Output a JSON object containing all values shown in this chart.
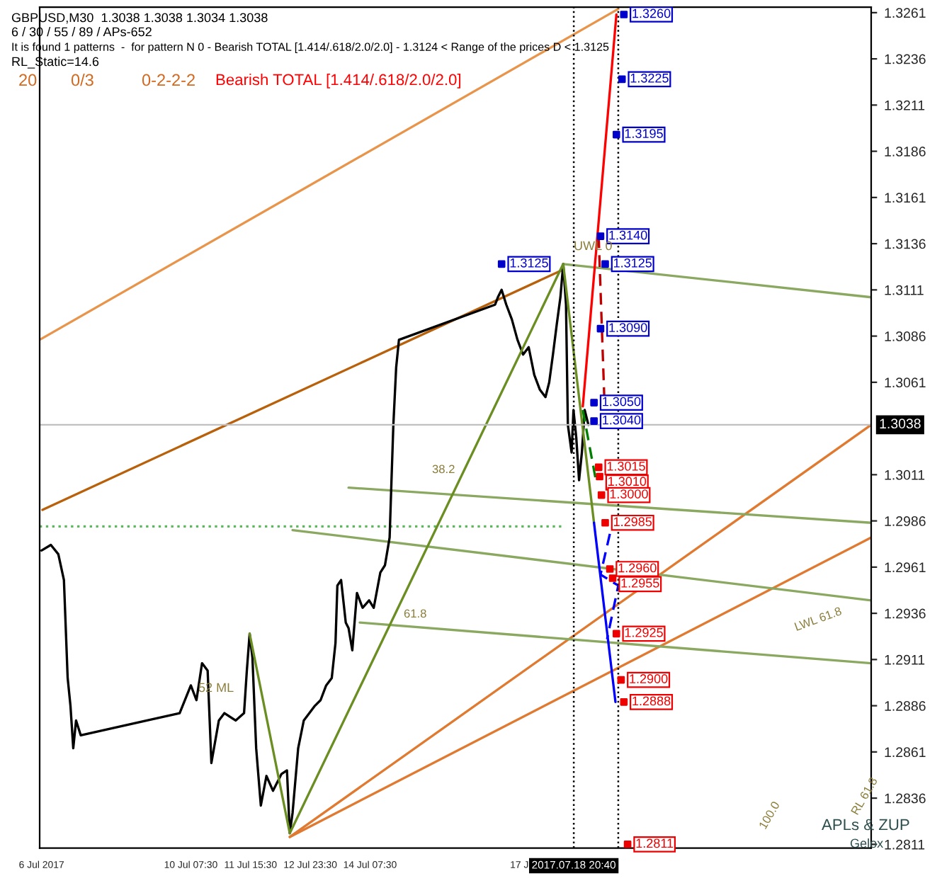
{
  "chart_data": {
    "type": "line",
    "annotations": [
      "GBPUSD,M30  1.3038 1.3038 1.3034 1.3038",
      "6 / 30 / 55 / 89 / APs-652",
      "It is found 1 patterns  -  for pattern N 0 - Bearish TOTAL [1.414/.618/2.0/2.0] - 1.3124 < Range of the prices D < 1.3125",
      "RL_Static=14.6",
      "20",
      "0/3",
      "0-2-2-2",
      "Bearish TOTAL [1.414/.618/2.0/2.0]",
      "APLs & ZUP",
      "Gelox",
      "UWL 0",
      "LWL 61.8",
      "RL 61.8",
      "100.0",
      "52 ML",
      "61.8",
      "38.2"
    ],
    "series": [
      {
        "color": "#b8600a",
        "line_style": "solid",
        "x": [
          "2017-07-07T00:00",
          "2017-07-18T15:00"
        ],
        "values": [
          1.2992,
          1.3122
        ]
      },
      {
        "color": "#e8944a",
        "line_style": "solid",
        "x": [
          "2017-07-06T22:30",
          "2017-07-19T20:30"
        ],
        "values": [
          1.3084,
          1.3263
        ]
      },
      {
        "color": "#e07a30",
        "line_style": "solid",
        "x": [
          "2017-07-12T12:30",
          "2017-07-25T12:00"
        ],
        "values": [
          1.2815,
          1.2977
        ]
      },
      {
        "color": "#e07a30",
        "line_style": "solid",
        "x": [
          "2017-07-12T12:30",
          "2017-07-25T12:00"
        ],
        "values": [
          1.2815,
          1.3038
        ]
      },
      {
        "color": "#8aa860",
        "line_style": "solid",
        "x": [
          "2017-07-18T15:00",
          "2017-07-25T12:00"
        ],
        "values": [
          1.3125,
          1.3107
        ]
      },
      {
        "color": "#8aa860",
        "line_style": "solid",
        "x": [
          "2017-07-13T20:00",
          "2017-07-25T12:00"
        ],
        "values": [
          1.3004,
          1.2985
        ]
      },
      {
        "color": "#8aa860",
        "line_style": "solid",
        "x": [
          "2017-07-12T14:00",
          "2017-07-25T12:00"
        ],
        "values": [
          1.2981,
          1.2943
        ]
      },
      {
        "color": "#8aa860",
        "line_style": "solid",
        "x": [
          "2017-07-14T02:00",
          "2017-07-25T12:00"
        ],
        "values": [
          1.2931,
          1.2909
        ]
      },
      {
        "color": "#5cb85c",
        "line_style": "dotted",
        "x": [
          "2017-07-06T22:30",
          "2017-07-18T14:30"
        ],
        "values": [
          1.2983,
          1.2983
        ]
      },
      {
        "color": "#000000",
        "line_style": "solid",
        "x": [
          "2017-07-06T23:30",
          "2017-07-07T04:30",
          "2017-07-07T08:30",
          "2017-07-07T11:30",
          "2017-07-07T13:30",
          "2017-07-07T15:00",
          "2017-07-07T16:30",
          "2017-07-07T18:00",
          "2017-07-07T20:30",
          "2017-07-10T01:30",
          "2017-07-10T07:30",
          "2017-07-10T10:30",
          "2017-07-10T13:30",
          "2017-07-10T16:30",
          "2017-07-10T18:30",
          "2017-07-10T22:30",
          "2017-07-11T01:30",
          "2017-07-11T07:30",
          "2017-07-11T12:00",
          "2017-07-11T13:30",
          "2017-07-11T15:00",
          "2017-07-11T16:30",
          "2017-07-11T18:30",
          "2017-07-11T21:00",
          "2017-07-12T00:00",
          "2017-07-12T03:30",
          "2017-07-12T08:00",
          "2017-07-12T11:00",
          "2017-07-12T12:30",
          "2017-07-12T14:00",
          "2017-07-12T17:00",
          "2017-07-12T20:00",
          "2017-07-12T23:00",
          "2017-07-13T02:00",
          "2017-07-13T05:00",
          "2017-07-13T08:00",
          "2017-07-13T11:00",
          "2017-07-13T13:00",
          "2017-07-13T14:00",
          "2017-07-13T16:00",
          "2017-07-13T18:30",
          "2017-07-13T20:00",
          "2017-07-13T22:00",
          "2017-07-14T00:30",
          "2017-07-14T03:30",
          "2017-07-14T07:00",
          "2017-07-14T09:30",
          "2017-07-14T13:00",
          "2017-07-14T15:30",
          "2017-07-14T18:00",
          "2017-07-14T19:00",
          "2017-07-14T20:00",
          "2017-07-14T21:30",
          "2017-07-14T23:00",
          "2017-07-17T02:30",
          "2017-07-17T04:00",
          "2017-07-17T06:00",
          "2017-07-17T08:30",
          "2017-07-17T11:30",
          "2017-07-17T14:30",
          "2017-07-17T17:30",
          "2017-07-17T20:30",
          "2017-07-17T23:30",
          "2017-07-18T02:30",
          "2017-07-18T05:30",
          "2017-07-18T07:30",
          "2017-07-18T09:30",
          "2017-07-18T11:30",
          "2017-07-18T13:30",
          "2017-07-18T15:00",
          "2017-07-18T16:30",
          "2017-07-18T17:30",
          "2017-07-18T19:30",
          "2017-07-18T20:30",
          "2017-07-18T22:00",
          "2017-07-18T23:30",
          "2017-07-19T01:00",
          "2017-07-19T02:30",
          "2017-07-19T04:30"
        ],
        "values": [
          1.297,
          1.2973,
          1.2968,
          1.2954,
          1.2901,
          1.2886,
          1.2863,
          1.2878,
          1.287,
          1.2882,
          1.2897,
          1.2889,
          1.2909,
          1.2905,
          1.2855,
          1.2878,
          1.2882,
          1.2878,
          1.2882,
          1.2905,
          1.2925,
          1.2912,
          1.2863,
          1.2832,
          1.2848,
          1.284,
          1.2849,
          1.2851,
          1.2817,
          1.2828,
          1.2863,
          1.2878,
          1.2882,
          1.2886,
          1.2889,
          1.2897,
          1.2901,
          1.292,
          1.2951,
          1.2954,
          1.2931,
          1.2928,
          1.2916,
          1.2947,
          1.2939,
          1.2943,
          1.2939,
          1.2958,
          1.2962,
          1.2977,
          1.3008,
          1.3038,
          1.3069,
          1.3084,
          1.3103,
          1.3107,
          1.3111,
          1.3103,
          1.3095,
          1.3084,
          1.3076,
          1.308,
          1.3065,
          1.3057,
          1.3053,
          1.3061,
          1.3076,
          1.3092,
          1.3107,
          1.3125,
          1.3103,
          1.3038,
          1.3023,
          1.3046,
          1.3031,
          1.3008,
          1.3023,
          1.3046,
          1.3038
        ]
      },
      {
        "color": "#6b8e23",
        "line_style": "solid",
        "x": [
          "2017-07-11T15:00",
          "2017-07-12T12:30",
          "2017-07-18T15:00",
          "2017-07-19T07:30"
        ],
        "values": [
          1.2925,
          1.2817,
          1.3125,
          1.2985
        ]
      },
      {
        "color": "#ff0000",
        "line_style": "solid",
        "x": [
          "2017-07-19T01:30",
          "2017-07-19T19:30"
        ],
        "values": [
          1.3048,
          1.326
        ]
      },
      {
        "color": "#c00000",
        "line_style": "dashed",
        "x": [
          "2017-07-19T10:00",
          "2017-07-19T13:00"
        ],
        "values": [
          1.314,
          1.3053
        ]
      },
      {
        "color": "#008000",
        "line_style": "dashed",
        "x": [
          "2017-07-19T01:30",
          "2017-07-19T08:30"
        ],
        "values": [
          1.3046,
          1.3008
        ]
      },
      {
        "color": "#0000ff",
        "line_style": "solid",
        "x": [
          "2017-07-19T07:30",
          "2017-07-19T19:00"
        ],
        "values": [
          1.2985,
          1.2888
        ]
      },
      {
        "color": "#0000ff",
        "line_style": "dashed",
        "x": [
          "2017-07-19T16:00",
          "2017-07-19T11:00",
          "2017-07-19T20:30",
          "2017-07-19T14:30"
        ],
        "values": [
          1.2979,
          1.2957,
          1.2951,
          1.2922
        ]
      },
      {
        "type": "scatter",
        "marker": "square",
        "color": "#0000cc",
        "x": [
          "2017-07-19T23:30",
          "2017-07-19T22:30",
          "2017-07-19T19:30",
          "2017-07-19T11:00",
          "2017-07-17T06:00",
          "2017-07-19T13:30",
          "2017-07-19T11:00",
          "2017-07-19T07:30",
          "2017-07-19T07:30"
        ],
        "values": [
          1.326,
          1.3225,
          1.3195,
          1.314,
          1.3125,
          1.3125,
          1.309,
          1.305,
          1.304
        ],
        "value_labels": [
          "1.3260",
          "1.3225",
          "1.3195",
          "1.3140",
          "1.3125",
          "1.3125",
          "1.3090",
          "1.3050",
          "1.3040"
        ]
      },
      {
        "type": "scatter",
        "marker": "square",
        "color": "#ee0000",
        "x": [
          "2017-07-19T10:00",
          "2017-07-19T10:30",
          "2017-07-19T11:30",
          "2017-07-19T13:30",
          "2017-07-19T16:00",
          "2017-07-19T17:30",
          "2017-07-19T19:30",
          "2017-07-19T22:00",
          "2017-07-19T23:30",
          "2017-07-20T01:30"
        ],
        "values": [
          1.3015,
          1.301,
          1.3,
          1.2985,
          1.296,
          1.2955,
          1.2925,
          1.29,
          1.2888,
          1.2811
        ],
        "value_labels": [
          "1.3015",
          "1.3010",
          "1.3000",
          "1.2985",
          "1.2960",
          "1.2955",
          "1.2925",
          "1.2900",
          "1.2888",
          "1.2811"
        ]
      }
    ],
    "ref_lines": [
      {
        "axis": "y",
        "value": 1.3038,
        "label": "1.3038",
        "color": "#c0c0c0",
        "line_style": "solid"
      },
      {
        "axis": "x",
        "value": "2017-07-18T20:40",
        "label": "2017.07.18 20:40",
        "color": "#000000",
        "line_style": "dotted"
      },
      {
        "axis": "x",
        "value": "2017-07-19T20:30",
        "label": null,
        "color": "#000000",
        "line_style": "dotted"
      }
    ],
    "xlim": [
      "2017-07-06T22:30",
      "2017-07-25T12:00"
    ],
    "ylim": [
      1.2809,
      1.3264
    ],
    "xticks": [
      {
        "value": "2017-07-06T23:30",
        "label": "6 Jul 2017"
      },
      {
        "value": "2017-07-10T07:30",
        "label": "10 Jul 07:30"
      },
      {
        "value": "2017-07-11T15:30",
        "label": "11 Jul 15:30"
      },
      {
        "value": "2017-07-12T23:30",
        "label": "12 Jul 23:30"
      },
      {
        "value": "2017-07-14T07:30",
        "label": "14 Jul 07:30"
      },
      {
        "value": "2017-07-17T15:30",
        "label": "17 J"
      }
    ],
    "yticks": [
      1.2811,
      1.2836,
      1.2861,
      1.2886,
      1.2911,
      1.2936,
      1.2961,
      1.2986,
      1.3011,
      1.3061,
      1.3086,
      1.3111,
      1.3136,
      1.3161,
      1.3186,
      1.3211,
      1.3236,
      1.3261
    ],
    "grid": false,
    "legend": false
  }
}
